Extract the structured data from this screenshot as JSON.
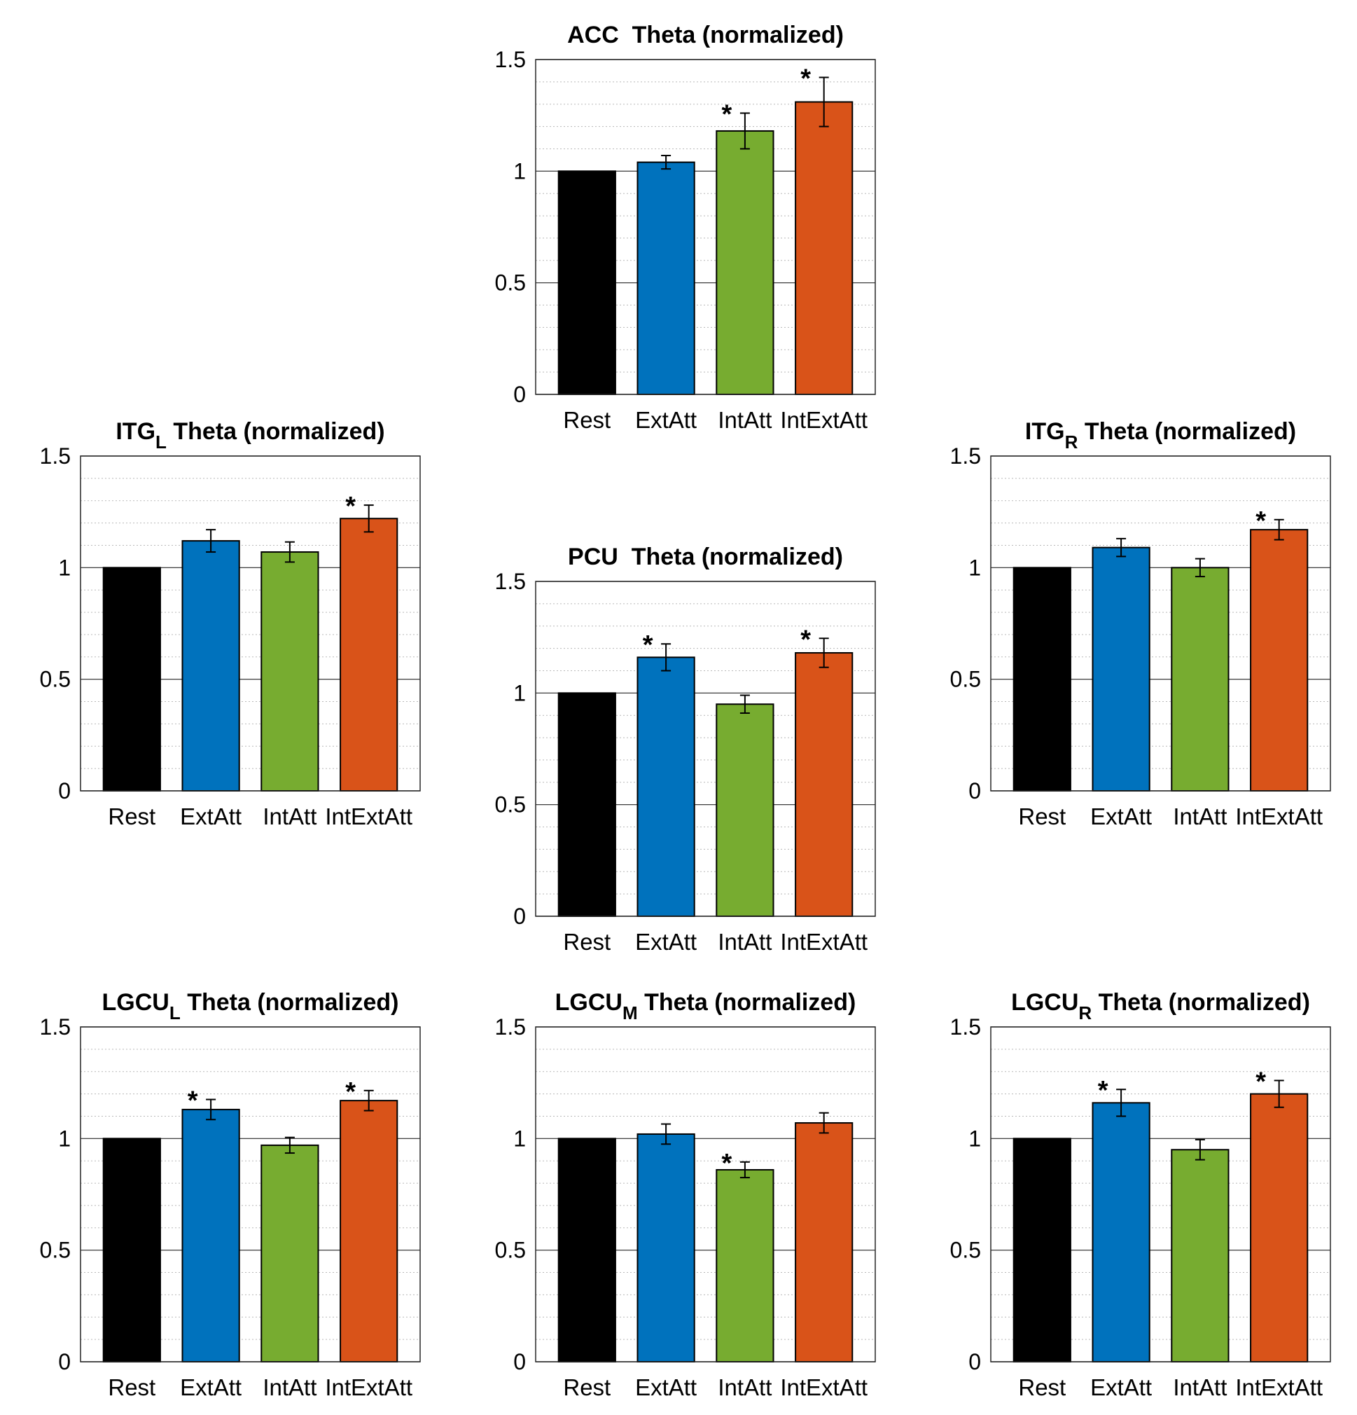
{
  "figure": {
    "colors": {
      "Rest": "#000000",
      "ExtAtt": "#0072bd",
      "IntAtt": "#77ac30",
      "IntExtAtt": "#d95319"
    },
    "significance_marker": "*"
  },
  "chart_data": [
    {
      "id": "acc",
      "type": "bar",
      "title": "ACC  Theta (normalized)",
      "title_main": "ACC",
      "title_sub": "",
      "title_rest": "  Theta (normalized)",
      "categories": [
        "Rest",
        "ExtAtt",
        "IntAtt",
        "IntExtAtt"
      ],
      "values": [
        1.0,
        1.04,
        1.18,
        1.31
      ],
      "error": [
        0,
        0.03,
        0.08,
        0.11
      ],
      "significant": [
        false,
        false,
        true,
        true
      ],
      "ylim": [
        0,
        1.5
      ],
      "yticks": [
        "0",
        "0.5",
        "1",
        "1.5"
      ],
      "grid": "minor dotted, y only",
      "xlabel": "",
      "ylabel": ""
    },
    {
      "id": "itg_l",
      "type": "bar",
      "title": "ITG_L Theta (normalized)",
      "title_main": "ITG",
      "title_sub": "L",
      "title_rest": " Theta (normalized)",
      "categories": [
        "Rest",
        "ExtAtt",
        "IntAtt",
        "IntExtAtt"
      ],
      "values": [
        1.0,
        1.12,
        1.07,
        1.22
      ],
      "error": [
        0,
        0.05,
        0.045,
        0.06
      ],
      "significant": [
        false,
        false,
        false,
        true
      ],
      "ylim": [
        0,
        1.5
      ],
      "yticks": [
        "0",
        "0.5",
        "1",
        "1.5"
      ],
      "grid": "minor dotted, y only",
      "xlabel": "",
      "ylabel": ""
    },
    {
      "id": "pcu",
      "type": "bar",
      "title": "PCU  Theta (normalized)",
      "title_main": "PCU",
      "title_sub": "",
      "title_rest": "  Theta (normalized)",
      "categories": [
        "Rest",
        "ExtAtt",
        "IntAtt",
        "IntExtAtt"
      ],
      "values": [
        1.0,
        1.16,
        0.95,
        1.18
      ],
      "error": [
        0,
        0.06,
        0.04,
        0.065
      ],
      "significant": [
        false,
        true,
        false,
        true
      ],
      "ylim": [
        0,
        1.5
      ],
      "yticks": [
        "0",
        "0.5",
        "1",
        "1.5"
      ],
      "grid": "minor dotted, y only",
      "xlabel": "",
      "ylabel": ""
    },
    {
      "id": "itg_r",
      "type": "bar",
      "title": "ITG_R Theta (normalized)",
      "title_main": "ITG",
      "title_sub": "R",
      "title_rest": " Theta (normalized)",
      "categories": [
        "Rest",
        "ExtAtt",
        "IntAtt",
        "IntExtAtt"
      ],
      "values": [
        1.0,
        1.09,
        1.0,
        1.17
      ],
      "error": [
        0,
        0.04,
        0.04,
        0.045
      ],
      "significant": [
        false,
        false,
        false,
        true
      ],
      "ylim": [
        0,
        1.5
      ],
      "yticks": [
        "0",
        "0.5",
        "1",
        "1.5"
      ],
      "grid": "minor dotted, y only",
      "xlabel": "",
      "ylabel": ""
    },
    {
      "id": "lgcu_l",
      "type": "bar",
      "title": "LGCU_L Theta (normalized)",
      "title_main": "LGCU",
      "title_sub": "L",
      "title_rest": " Theta (normalized)",
      "categories": [
        "Rest",
        "ExtAtt",
        "IntAtt",
        "IntExtAtt"
      ],
      "values": [
        1.0,
        1.13,
        0.97,
        1.17
      ],
      "error": [
        0,
        0.045,
        0.035,
        0.045
      ],
      "significant": [
        false,
        true,
        false,
        true
      ],
      "ylim": [
        0,
        1.5
      ],
      "yticks": [
        "0",
        "0.5",
        "1",
        "1.5"
      ],
      "grid": "minor dotted, y only",
      "xlabel": "",
      "ylabel": ""
    },
    {
      "id": "lgcu_m",
      "type": "bar",
      "title": "LGCU_M Theta (normalized)",
      "title_main": "LGCU",
      "title_sub": "M",
      "title_rest": " Theta (normalized)",
      "categories": [
        "Rest",
        "ExtAtt",
        "IntAtt",
        "IntExtAtt"
      ],
      "values": [
        1.0,
        1.02,
        0.86,
        1.07
      ],
      "error": [
        0,
        0.045,
        0.035,
        0.045
      ],
      "significant": [
        false,
        false,
        true,
        false
      ],
      "ylim": [
        0,
        1.5
      ],
      "yticks": [
        "0",
        "0.5",
        "1",
        "1.5"
      ],
      "grid": "minor dotted, y only",
      "xlabel": "",
      "ylabel": ""
    },
    {
      "id": "lgcu_r",
      "type": "bar",
      "title": "LGCU_R Theta (normalized)",
      "title_main": "LGCU",
      "title_sub": "R",
      "title_rest": " Theta (normalized)",
      "categories": [
        "Rest",
        "ExtAtt",
        "IntAtt",
        "IntExtAtt"
      ],
      "values": [
        1.0,
        1.16,
        0.95,
        1.2
      ],
      "error": [
        0,
        0.06,
        0.045,
        0.06
      ],
      "significant": [
        false,
        true,
        false,
        true
      ],
      "ylim": [
        0,
        1.5
      ],
      "yticks": [
        "0",
        "0.5",
        "1",
        "1.5"
      ],
      "grid": "minor dotted, y only",
      "xlabel": "",
      "ylabel": ""
    }
  ]
}
